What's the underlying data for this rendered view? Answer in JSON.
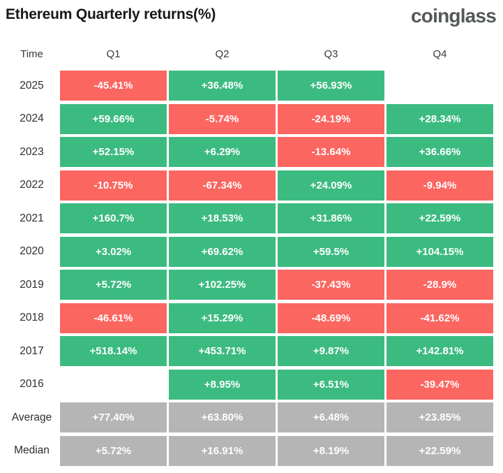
{
  "header": {
    "title": "Ethereum Quarterly returns(%)",
    "logo": "coinglass"
  },
  "colors": {
    "positive": "#3CBB81",
    "negative": "#FB6661",
    "neutral": "#B5B5B5",
    "title": "#16181B",
    "logo": "#54585A"
  },
  "chart_data": {
    "type": "heatmap",
    "title": "Ethereum Quarterly returns(%)",
    "columns": [
      "Time",
      "Q1",
      "Q2",
      "Q3",
      "Q4"
    ],
    "legend": "green = positive return, red = negative return, gray = summary row",
    "rows": [
      {
        "label": "2025",
        "kind": "year",
        "values": [
          "-45.41%",
          "+36.48%",
          "+56.93%",
          ""
        ]
      },
      {
        "label": "2024",
        "kind": "year",
        "values": [
          "+59.66%",
          "-5.74%",
          "-24.19%",
          "+28.34%"
        ]
      },
      {
        "label": "2023",
        "kind": "year",
        "values": [
          "+52.15%",
          "+6.29%",
          "-13.64%",
          "+36.66%"
        ]
      },
      {
        "label": "2022",
        "kind": "year",
        "values": [
          "-10.75%",
          "-67.34%",
          "+24.09%",
          "-9.94%"
        ]
      },
      {
        "label": "2021",
        "kind": "year",
        "values": [
          "+160.7%",
          "+18.53%",
          "+31.86%",
          "+22.59%"
        ]
      },
      {
        "label": "2020",
        "kind": "year",
        "values": [
          "+3.02%",
          "+69.62%",
          "+59.5%",
          "+104.15%"
        ]
      },
      {
        "label": "2019",
        "kind": "year",
        "values": [
          "+5.72%",
          "+102.25%",
          "-37.43%",
          "-28.9%"
        ]
      },
      {
        "label": "2018",
        "kind": "year",
        "values": [
          "-46.61%",
          "+15.29%",
          "-48.69%",
          "-41.62%"
        ]
      },
      {
        "label": "2017",
        "kind": "year",
        "values": [
          "+518.14%",
          "+453.71%",
          "+9.87%",
          "+142.81%"
        ]
      },
      {
        "label": "2016",
        "kind": "year",
        "values": [
          "",
          "+8.95%",
          "+6.51%",
          "-39.47%"
        ]
      },
      {
        "label": "Average",
        "kind": "summary",
        "values": [
          "+77.40%",
          "+63.80%",
          "+6.48%",
          "+23.85%"
        ]
      },
      {
        "label": "Median",
        "kind": "summary",
        "values": [
          "+5.72%",
          "+16.91%",
          "+8.19%",
          "+22.59%"
        ]
      }
    ]
  }
}
